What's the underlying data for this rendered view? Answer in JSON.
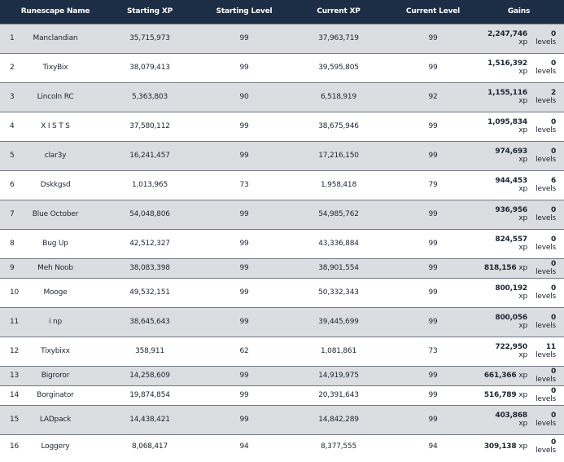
{
  "columns": [
    "Runescape Name",
    "Starting XP",
    "Starting Level",
    "Current XP",
    "Current Level",
    "Gains"
  ],
  "rows": [
    {
      "rank": "1",
      "name": "Manclandian",
      "start_xp": "35,715,973",
      "start_level": "99",
      "current_xp": "37,963,719",
      "current_level": "99",
      "gain_xp": "2,247,746",
      "gain_xp_unit": "xp",
      "gain_levels": "0",
      "gain_levels_unit": "levels"
    },
    {
      "rank": "2",
      "name": "TixyBix",
      "start_xp": "38,079,413",
      "start_level": "99",
      "current_xp": "39,595,805",
      "current_level": "99",
      "gain_xp": "1,516,392",
      "gain_xp_unit": "xp",
      "gain_levels": "0",
      "gain_levels_unit": "levels"
    },
    {
      "rank": "3",
      "name": "Lincoln RC",
      "start_xp": "5,363,803",
      "start_level": "90",
      "current_xp": "6,518,919",
      "current_level": "92",
      "gain_xp": "1,155,116",
      "gain_xp_unit": "xp",
      "gain_levels": "2",
      "gain_levels_unit": "levels"
    },
    {
      "rank": "4",
      "name": "X I S T S",
      "start_xp": "37,580,112",
      "start_level": "99",
      "current_xp": "38,675,946",
      "current_level": "99",
      "gain_xp": "1,095,834",
      "gain_xp_unit": "xp",
      "gain_levels": "0",
      "gain_levels_unit": "levels"
    },
    {
      "rank": "5",
      "name": "clar3y",
      "start_xp": "16,241,457",
      "start_level": "99",
      "current_xp": "17,216,150",
      "current_level": "99",
      "gain_xp": "974,693",
      "gain_xp_unit": "xp",
      "gain_levels": "0",
      "gain_levels_unit": "levels"
    },
    {
      "rank": "6",
      "name": "Dskkgsd",
      "start_xp": "1,013,965",
      "start_level": "73",
      "current_xp": "1,958,418",
      "current_level": "79",
      "gain_xp": "944,453",
      "gain_xp_unit": "xp",
      "gain_levels": "6",
      "gain_levels_unit": "levels"
    },
    {
      "rank": "7",
      "name": "Blue October",
      "start_xp": "54,048,806",
      "start_level": "99",
      "current_xp": "54,985,762",
      "current_level": "99",
      "gain_xp": "936,956",
      "gain_xp_unit": "xp",
      "gain_levels": "0",
      "gain_levels_unit": "levels"
    },
    {
      "rank": "8",
      "name": "Bug Up",
      "start_xp": "42,512,327",
      "start_level": "99",
      "current_xp": "43,336,884",
      "current_level": "99",
      "gain_xp": "824,557",
      "gain_xp_unit": "xp",
      "gain_levels": "0",
      "gain_levels_unit": "levels"
    },
    {
      "rank": "9",
      "name": "Meh Noob",
      "start_xp": "38,083,398",
      "start_level": "99",
      "current_xp": "38,901,554",
      "current_level": "99",
      "gain_xp": "818,156",
      "gain_xp_unit": "xp",
      "gain_levels": "0",
      "gain_levels_unit": "levels"
    },
    {
      "rank": "10",
      "name": "Mooge",
      "start_xp": "49,532,151",
      "start_level": "99",
      "current_xp": "50,332,343",
      "current_level": "99",
      "gain_xp": "800,192",
      "gain_xp_unit": "xp",
      "gain_levels": "0",
      "gain_levels_unit": "levels"
    },
    {
      "rank": "11",
      "name": "i np",
      "start_xp": "38,645,643",
      "start_level": "99",
      "current_xp": "39,445,699",
      "current_level": "99",
      "gain_xp": "800,056",
      "gain_xp_unit": "xp",
      "gain_levels": "0",
      "gain_levels_unit": "levels"
    },
    {
      "rank": "12",
      "name": "Tixybixx",
      "start_xp": "358,911",
      "start_level": "62",
      "current_xp": "1,081,861",
      "current_level": "73",
      "gain_xp": "722,950",
      "gain_xp_unit": "xp",
      "gain_levels": "11",
      "gain_levels_unit": "levels"
    },
    {
      "rank": "13",
      "name": "Bigroror",
      "start_xp": "14,258,609",
      "start_level": "99",
      "current_xp": "14,919,975",
      "current_level": "99",
      "gain_xp": "661,366",
      "gain_xp_unit": "xp",
      "gain_levels": "0",
      "gain_levels_unit": "levels"
    },
    {
      "rank": "14",
      "name": "Borginator",
      "start_xp": "19,874,854",
      "start_level": "99",
      "current_xp": "20,391,643",
      "current_level": "99",
      "gain_xp": "516,789",
      "gain_xp_unit": "xp",
      "gain_levels": "0",
      "gain_levels_unit": "levels"
    },
    {
      "rank": "15",
      "name": "LADpack",
      "start_xp": "14,438,421",
      "start_level": "99",
      "current_xp": "14,842,289",
      "current_level": "99",
      "gain_xp": "403,868",
      "gain_xp_unit": "xp",
      "gain_levels": "0",
      "gain_levels_unit": "levels"
    },
    {
      "rank": "16",
      "name": "Loggery",
      "start_xp": "8,068,417",
      "start_level": "94",
      "current_xp": "8,377,555",
      "current_level": "94",
      "gain_xp": "309,138",
      "gain_xp_unit": "xp",
      "gain_levels": "0",
      "gain_levels_unit": "levels"
    }
  ]
}
